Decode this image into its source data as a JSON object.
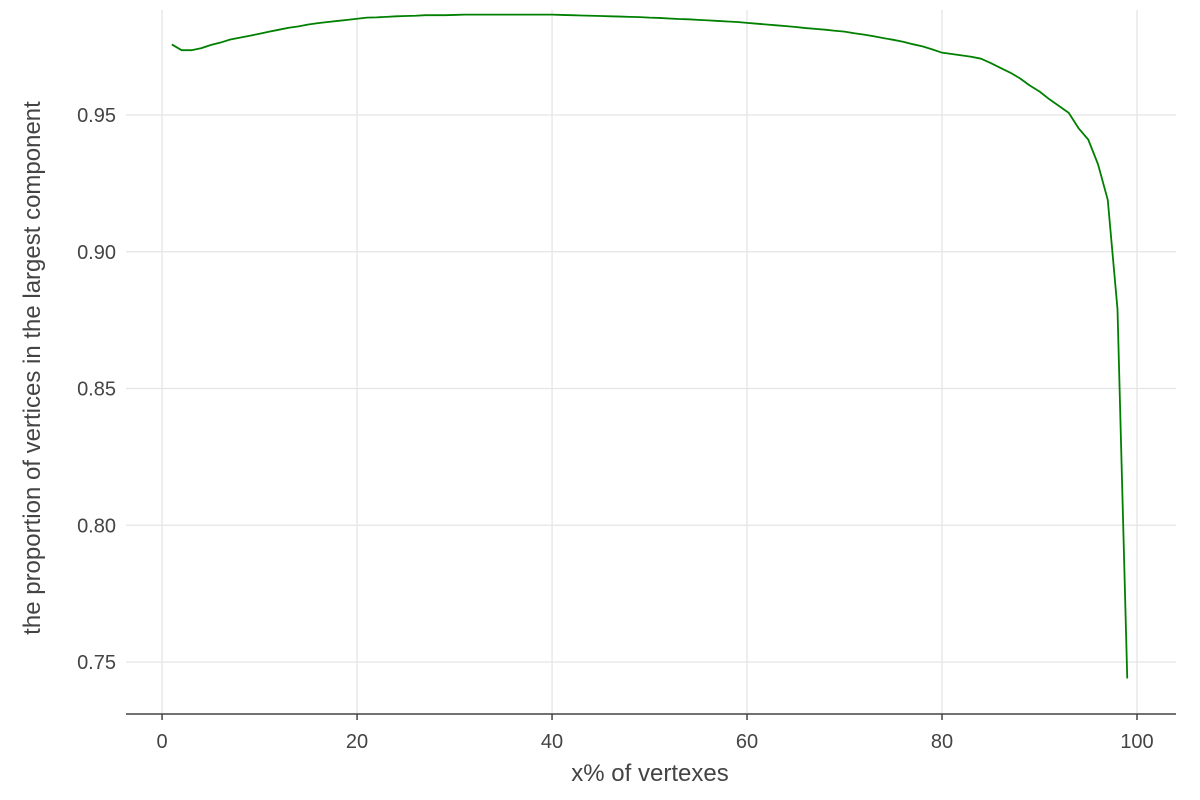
{
  "chart_data": {
    "type": "line",
    "title": "",
    "xlabel": "x% of vertexes",
    "ylabel": "the proportion of vertices in the largest component",
    "xlim": [
      -3.7,
      104
    ],
    "ylim": [
      0.731,
      0.9884
    ],
    "x_ticks": [
      0,
      20,
      40,
      60,
      80,
      100
    ],
    "y_ticks": [
      0.75,
      0.8,
      0.85,
      0.9,
      0.95
    ],
    "x_tick_labels": [
      "0",
      "20",
      "40",
      "60",
      "80",
      "100"
    ],
    "y_tick_labels": [
      "0.75",
      "0.80",
      "0.85",
      "0.90",
      "0.95"
    ],
    "grid": true,
    "legend": "none",
    "series": [
      {
        "color": "#008000",
        "x": [
          1,
          2,
          3,
          4,
          5,
          6,
          7,
          8,
          9,
          10,
          11,
          12,
          13,
          14,
          15,
          16,
          17,
          18,
          19,
          20,
          21,
          22,
          23,
          24,
          25,
          26,
          27,
          28,
          29,
          30,
          31,
          32,
          33,
          34,
          35,
          36,
          37,
          38,
          39,
          40,
          41,
          42,
          43,
          44,
          45,
          46,
          47,
          48,
          49,
          50,
          51,
          52,
          53,
          54,
          55,
          56,
          57,
          58,
          59,
          60,
          61,
          62,
          63,
          64,
          65,
          66,
          67,
          68,
          69,
          70,
          71,
          72,
          73,
          74,
          75,
          76,
          77,
          78,
          79,
          80,
          81,
          82,
          83,
          84,
          85,
          86,
          87,
          88,
          89,
          90,
          91,
          92,
          93,
          94,
          95,
          96,
          97,
          98,
          99
        ],
        "y": [
          0.9758,
          0.9737,
          0.9737,
          0.9744,
          0.9756,
          0.9765,
          0.9776,
          0.9783,
          0.979,
          0.9797,
          0.9805,
          0.9812,
          0.9819,
          0.9824,
          0.9831,
          0.9836,
          0.984,
          0.9844,
          0.9848,
          0.9852,
          0.9856,
          0.9857,
          0.9859,
          0.9861,
          0.9862,
          0.9863,
          0.9865,
          0.9865,
          0.9865,
          0.9866,
          0.9867,
          0.9867,
          0.9867,
          0.9867,
          0.9867,
          0.9867,
          0.9867,
          0.9867,
          0.9867,
          0.9867,
          0.9866,
          0.9865,
          0.9864,
          0.9863,
          0.9862,
          0.9861,
          0.986,
          0.9859,
          0.9858,
          0.9856,
          0.9855,
          0.9853,
          0.9851,
          0.985,
          0.9848,
          0.9846,
          0.9844,
          0.9842,
          0.984,
          0.9837,
          0.9834,
          0.9831,
          0.9828,
          0.9825,
          0.9822,
          0.9818,
          0.9815,
          0.9812,
          0.9808,
          0.9805,
          0.9799,
          0.9794,
          0.9788,
          0.9781,
          0.9775,
          0.9768,
          0.9759,
          0.9751,
          0.974,
          0.9728,
          0.9723,
          0.9718,
          0.9713,
          0.9706,
          0.969,
          0.9672,
          0.9655,
          0.9634,
          0.9608,
          0.9586,
          0.9558,
          0.9533,
          0.9508,
          0.9452,
          0.941,
          0.932,
          0.919,
          0.879,
          0.744
        ]
      }
    ]
  }
}
